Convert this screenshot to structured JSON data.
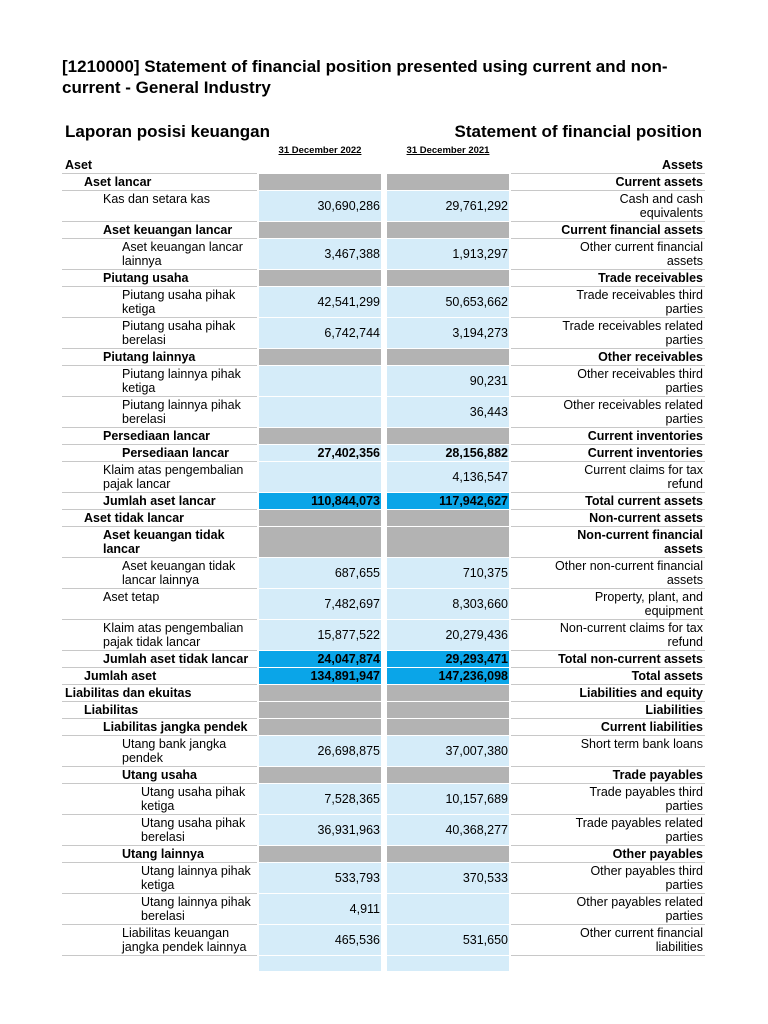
{
  "title": "[1210000] Statement of financial position presented using current and non-current - General Industry",
  "header": {
    "left": "Laporan posisi keuangan",
    "right": "Statement of financial position"
  },
  "columns": [
    "31 December 2022",
    "31 December 2021"
  ],
  "rows": [
    {
      "id": "Aset",
      "values": [
        null,
        null
      ],
      "en": "Assets"
    },
    {
      "id": "Aset lancar",
      "values": [
        null,
        null
      ],
      "en": "Current assets"
    },
    {
      "id": "Kas dan setara kas",
      "values": [
        "30,690,286",
        "29,761,292"
      ],
      "en": "Cash and cash equivalents"
    },
    {
      "id": "Aset keuangan lancar",
      "values": [
        null,
        null
      ],
      "en": "Current financial assets"
    },
    {
      "id": "Aset keuangan lancar lainnya",
      "values": [
        "3,467,388",
        "1,913,297"
      ],
      "en": "Other current financial assets"
    },
    {
      "id": "Piutang usaha",
      "values": [
        null,
        null
      ],
      "en": "Trade receivables"
    },
    {
      "id": "Piutang usaha pihak ketiga",
      "values": [
        "42,541,299",
        "50,653,662"
      ],
      "en": "Trade receivables third parties"
    },
    {
      "id": "Piutang usaha pihak berelasi",
      "values": [
        "6,742,744",
        "3,194,273"
      ],
      "en": "Trade receivables related parties"
    },
    {
      "id": "Piutang lainnya",
      "values": [
        null,
        null
      ],
      "en": "Other receivables"
    },
    {
      "id": "Piutang lainnya pihak ketiga",
      "values": [
        null,
        "90,231"
      ],
      "en": "Other receivables third parties"
    },
    {
      "id": "Piutang lainnya pihak berelasi",
      "values": [
        null,
        "36,443"
      ],
      "en": "Other receivables related parties"
    },
    {
      "id": "Persediaan lancar",
      "values": [
        null,
        null
      ],
      "en": "Current inventories"
    },
    {
      "id": "Persediaan lancar",
      "values": [
        "27,402,356",
        "28,156,882"
      ],
      "en": "Current inventories"
    },
    {
      "id": "Klaim atas pengembalian pajak lancar",
      "values": [
        null,
        "4,136,547"
      ],
      "en": "Current claims for tax refund"
    },
    {
      "id": "Jumlah aset lancar",
      "values": [
        "110,844,073",
        "117,942,627"
      ],
      "en": "Total current assets"
    },
    {
      "id": "Aset tidak lancar",
      "values": [
        null,
        null
      ],
      "en": "Non-current assets"
    },
    {
      "id": "Aset keuangan tidak lancar",
      "values": [
        null,
        null
      ],
      "en": "Non-current financial assets"
    },
    {
      "id": "Aset keuangan tidak lancar lainnya",
      "values": [
        "687,655",
        "710,375"
      ],
      "en": "Other non-current financial assets"
    },
    {
      "id": "Aset tetap",
      "values": [
        "7,482,697",
        "8,303,660"
      ],
      "en": "Property, plant, and equipment"
    },
    {
      "id": "Klaim atas pengembalian pajak tidak lancar",
      "values": [
        "15,877,522",
        "20,279,436"
      ],
      "en": "Non-current claims for tax refund"
    },
    {
      "id": "Jumlah aset tidak lancar",
      "values": [
        "24,047,874",
        "29,293,471"
      ],
      "en": "Total non-current assets"
    },
    {
      "id": "Jumlah aset",
      "values": [
        "134,891,947",
        "147,236,098"
      ],
      "en": "Total assets"
    },
    {
      "id": "Liabilitas dan ekuitas",
      "values": [
        null,
        null
      ],
      "en": "Liabilities and equity"
    },
    {
      "id": "Liabilitas",
      "values": [
        null,
        null
      ],
      "en": "Liabilities"
    },
    {
      "id": "Liabilitas jangka pendek",
      "values": [
        null,
        null
      ],
      "en": "Current liabilities"
    },
    {
      "id": "Utang bank jangka pendek",
      "values": [
        "26,698,875",
        "37,007,380"
      ],
      "en": "Short term bank loans"
    },
    {
      "id": "Utang usaha",
      "values": [
        null,
        null
      ],
      "en": "Trade payables"
    },
    {
      "id": "Utang usaha pihak ketiga",
      "values": [
        "7,528,365",
        "10,157,689"
      ],
      "en": "Trade payables third parties"
    },
    {
      "id": "Utang usaha pihak berelasi",
      "values": [
        "36,931,963",
        "40,368,277"
      ],
      "en": "Trade payables related parties"
    },
    {
      "id": "Utang lainnya",
      "values": [
        null,
        null
      ],
      "en": "Other payables"
    },
    {
      "id": "Utang lainnya pihak ketiga",
      "values": [
        "533,793",
        "370,533"
      ],
      "en": "Other payables third parties"
    },
    {
      "id": "Utang lainnya pihak berelasi",
      "values": [
        "4,911",
        null
      ],
      "en": "Other payables related parties"
    },
    {
      "id": "Liabilitas keuangan jangka pendek lainnya",
      "values": [
        "465,536",
        "531,650"
      ],
      "en": "Other current financial liabilities"
    }
  ]
}
